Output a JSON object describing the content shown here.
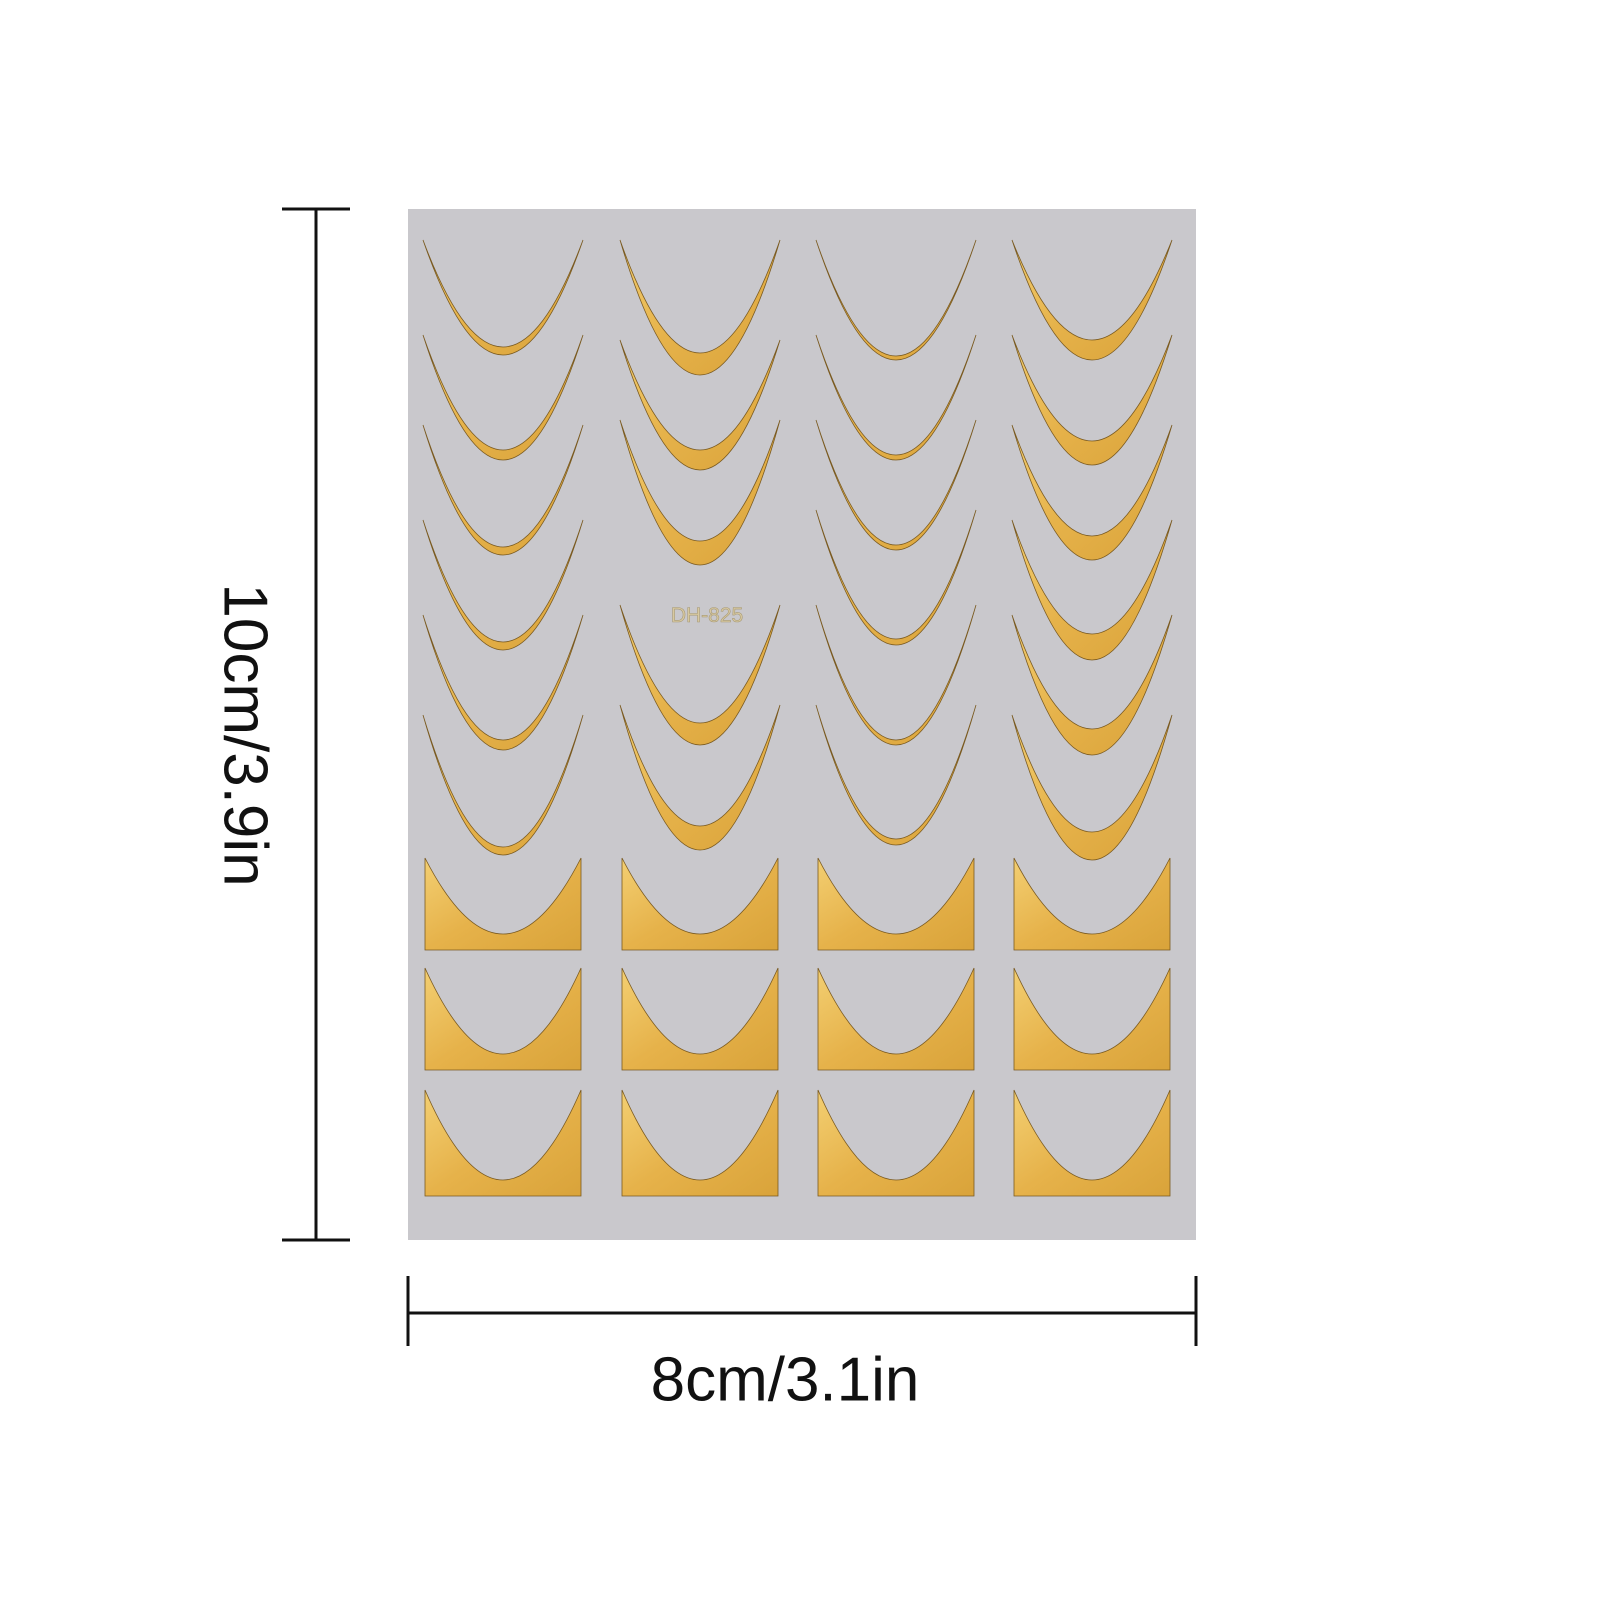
{
  "product": {
    "code_label": "DH-825",
    "sheet_color": "#c9c8cc",
    "gold_color": "#e8b64a",
    "item_kinds": [
      "crescent-french-tip",
      "square-french-tip"
    ]
  },
  "dimensions": {
    "height_label": "10cm/3.9in",
    "width_label": "8cm/3.1in",
    "line_color": "#111111"
  }
}
